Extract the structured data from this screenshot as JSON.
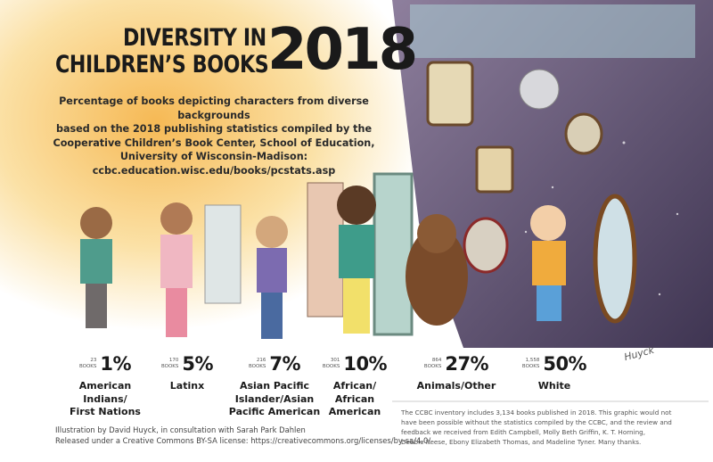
{
  "header": {
    "title_lines": [
      "DIVERSITY IN",
      "CHILDREN’S BOOKS"
    ],
    "year": "2018",
    "description_lines": [
      "Percentage of books depicting characters from diverse backgrounds",
      "based on the 2018 publishing statistics compiled by the",
      "Cooperative Children’s Book Center, School of Education,",
      "University of Wisconsin-Madison:",
      "ccbc.education.wisc.edu/books/pcstats.asp"
    ]
  },
  "items": [
    {
      "count": "23",
      "unit": "BOOKS",
      "percent": "1%",
      "label_lines": [
        "American",
        "Indians/",
        "First Nations"
      ]
    },
    {
      "count": "170",
      "unit": "BOOKS",
      "percent": "5%",
      "label_lines": [
        "Latinx"
      ]
    },
    {
      "count": "216",
      "unit": "BOOKS",
      "percent": "7%",
      "label_lines": [
        "Asian Pacific",
        "Islander/Asian",
        "Pacific American"
      ]
    },
    {
      "count": "301",
      "unit": "BOOKS",
      "percent": "10%",
      "label_lines": [
        "African/",
        "African",
        "American"
      ]
    },
    {
      "count": "864",
      "unit": "BOOKS",
      "percent": "27%",
      "label_lines": [
        "Animals/Other"
      ]
    },
    {
      "count": "1,558",
      "unit": "BOOKS",
      "percent": "50%",
      "label_lines": [
        "White"
      ]
    }
  ],
  "credits": [
    "Illustration by David Huyck, in consultation with Sarah Park Dahlen",
    "Released under a Creative Commons BY-SA license: https://creativecommons.org/licenses/by-sa/4.0/"
  ],
  "note_lines": [
    "The CCBC inventory includes 3,134 books published in 2018. This graphic would not",
    "have been possible without the statistics compiled by the CCBC, and the review and",
    "feedback we received from Edith Campbell, Molly Beth Griffin, K. T. Horning,",
    "Debbie Reese, Ebony Elizabeth Thomas, and Madeline Tyner. Many thanks."
  ],
  "signature": "Huyck"
}
